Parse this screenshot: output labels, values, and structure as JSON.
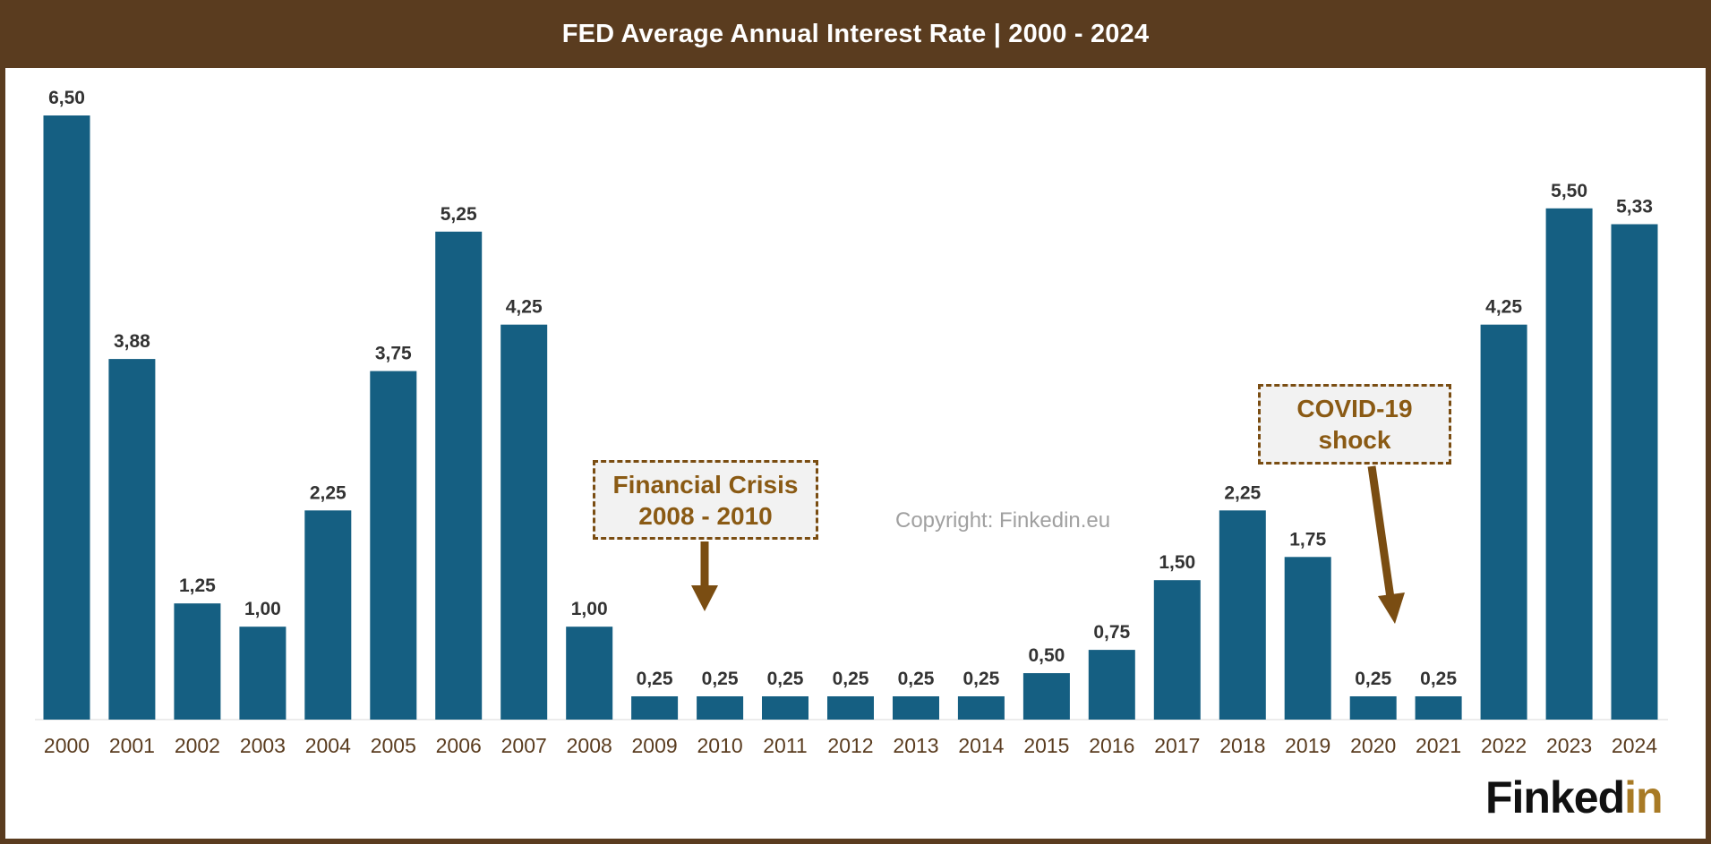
{
  "title": "FED Average Annual Interest Rate | 2000 - 2024",
  "copyright": "Copyright: Finkedin.eu",
  "logo": {
    "main": "Finked",
    "accent": "in"
  },
  "annotations": {
    "financial_crisis": {
      "line1": "Financial Crisis",
      "line2": "2008 - 2010"
    },
    "covid": {
      "line1": "COVID-19",
      "line2": "shock"
    }
  },
  "colors": {
    "frame": "#5a3c1f",
    "bar": "#155f82",
    "axis_text": "#5a3c1f",
    "annotation_text": "#8a5a14",
    "arrow": "#7a4d12"
  },
  "chart_data": {
    "type": "bar",
    "title": "FED Average Annual Interest Rate | 2000 - 2024",
    "categories": [
      "2000",
      "2001",
      "2002",
      "2003",
      "2004",
      "2005",
      "2006",
      "2007",
      "2008",
      "2009",
      "2010",
      "2011",
      "2012",
      "2013",
      "2014",
      "2015",
      "2016",
      "2017",
      "2018",
      "2019",
      "2020",
      "2021",
      "2022",
      "2023",
      "2024"
    ],
    "values": [
      6.5,
      3.88,
      1.25,
      1.0,
      2.25,
      3.75,
      5.25,
      4.25,
      1.0,
      0.25,
      0.25,
      0.25,
      0.25,
      0.25,
      0.25,
      0.5,
      0.75,
      1.5,
      2.25,
      1.75,
      0.25,
      0.25,
      4.25,
      5.5,
      5.33
    ],
    "data_labels": [
      "6,50",
      "3,88",
      "1,25",
      "1,00",
      "2,25",
      "3,75",
      "5,25",
      "4,25",
      "1,00",
      "0,25",
      "0,25",
      "0,25",
      "0,25",
      "0,25",
      "0,25",
      "0,50",
      "0,75",
      "1,50",
      "2,25",
      "1,75",
      "0,25",
      "0,25",
      "4,25",
      "5,50",
      "5,33"
    ],
    "ylim": [
      0,
      6.5
    ],
    "grid": false,
    "legend": "none"
  }
}
